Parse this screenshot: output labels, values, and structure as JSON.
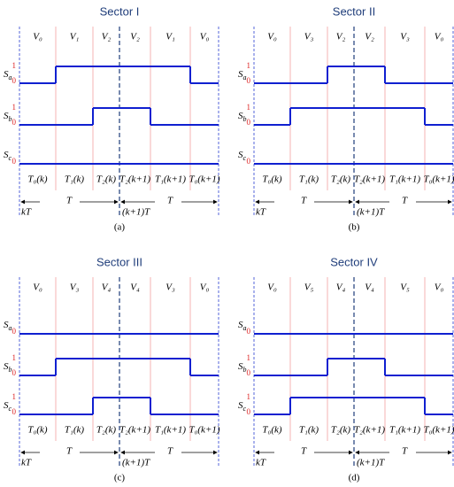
{
  "panels": [
    {
      "title": "Sector I",
      "vectors": [
        "V₀",
        "V₁",
        "V₂",
        "V₂",
        "V₁",
        "V₀"
      ],
      "signals": [
        {
          "letter": "S",
          "sub": "a",
          "levels": [
            "1",
            "0"
          ],
          "states": [
            0,
            1,
            1,
            1,
            1,
            0
          ]
        },
        {
          "letter": "S",
          "sub": "b",
          "levels": [
            "1",
            "0"
          ],
          "states": [
            0,
            0,
            1,
            1,
            0,
            0
          ]
        },
        {
          "letter": "S",
          "sub": "c",
          "levels": [
            "0"
          ],
          "states": [
            0,
            0,
            0,
            0,
            0,
            0
          ]
        }
      ],
      "times": [
        "T₀(k)",
        "T₁(k)",
        "T₂(k)",
        "T₂(k+1)",
        "T₁(k+1)",
        "T₀(k+1)"
      ],
      "start": "kT",
      "period_left": "T",
      "mid": "(k+1)T",
      "period_right": "T",
      "caption": "(a)"
    },
    {
      "title": "Sector II",
      "vectors": [
        "V₀",
        "V₃",
        "V₂",
        "V₂",
        "V₃",
        "V₀"
      ],
      "signals": [
        {
          "letter": "S",
          "sub": "a",
          "levels": [
            "1",
            "0"
          ],
          "states": [
            0,
            0,
            1,
            1,
            0,
            0
          ]
        },
        {
          "letter": "S",
          "sub": "b",
          "levels": [
            "1",
            "0"
          ],
          "states": [
            0,
            1,
            1,
            1,
            1,
            0
          ]
        },
        {
          "letter": "S",
          "sub": "c",
          "levels": [
            "0"
          ],
          "states": [
            0,
            0,
            0,
            0,
            0,
            0
          ]
        }
      ],
      "times": [
        "T₀(k)",
        "T₁(k)",
        "T₂(k)",
        "T₂(k+1)",
        "T₁(k+1)",
        "T₀(k+1)"
      ],
      "start": "kT",
      "period_left": "T",
      "mid": "(k+1)T",
      "period_right": "T",
      "caption": "(b)"
    },
    {
      "title": "Sector III",
      "vectors": [
        "V₀",
        "V₃",
        "V₄",
        "V₄",
        "V₃",
        "V₀"
      ],
      "signals": [
        {
          "letter": "S",
          "sub": "a",
          "levels": [
            "0"
          ],
          "states": [
            0,
            0,
            0,
            0,
            0,
            0
          ]
        },
        {
          "letter": "S",
          "sub": "b",
          "levels": [
            "1",
            "0"
          ],
          "states": [
            0,
            1,
            1,
            1,
            1,
            0
          ]
        },
        {
          "letter": "S",
          "sub": "c",
          "levels": [
            "1",
            "0"
          ],
          "states": [
            0,
            0,
            1,
            1,
            0,
            0
          ]
        }
      ],
      "times": [
        "T₀(k)",
        "T₁(k)",
        "T₂(k)",
        "T₂(k+1)",
        "T₁(k+1)",
        "T₀(k+1)"
      ],
      "start": "kT",
      "period_left": "T",
      "mid": "(k+1)T",
      "period_right": "T",
      "caption": "(c)"
    },
    {
      "title": "Sector IV",
      "vectors": [
        "V₀",
        "V₅",
        "V₄",
        "V₄",
        "V₅",
        "V₀"
      ],
      "signals": [
        {
          "letter": "S",
          "sub": "a",
          "levels": [
            "0"
          ],
          "states": [
            0,
            0,
            0,
            0,
            0,
            0
          ]
        },
        {
          "letter": "S",
          "sub": "b",
          "levels": [
            "1",
            "0"
          ],
          "states": [
            0,
            0,
            1,
            1,
            0,
            0
          ]
        },
        {
          "letter": "S",
          "sub": "c",
          "levels": [
            "1",
            "0"
          ],
          "states": [
            0,
            1,
            1,
            1,
            1,
            0
          ]
        }
      ],
      "times": [
        "T₀(k)",
        "T₁(k)",
        "T₂(k)",
        "T₂(k+1)",
        "T₁(k+1)",
        "T₀(k+1)"
      ],
      "start": "kT",
      "period_left": "T",
      "mid": "(k+1)T",
      "period_right": "T",
      "caption": "(d)"
    }
  ]
}
